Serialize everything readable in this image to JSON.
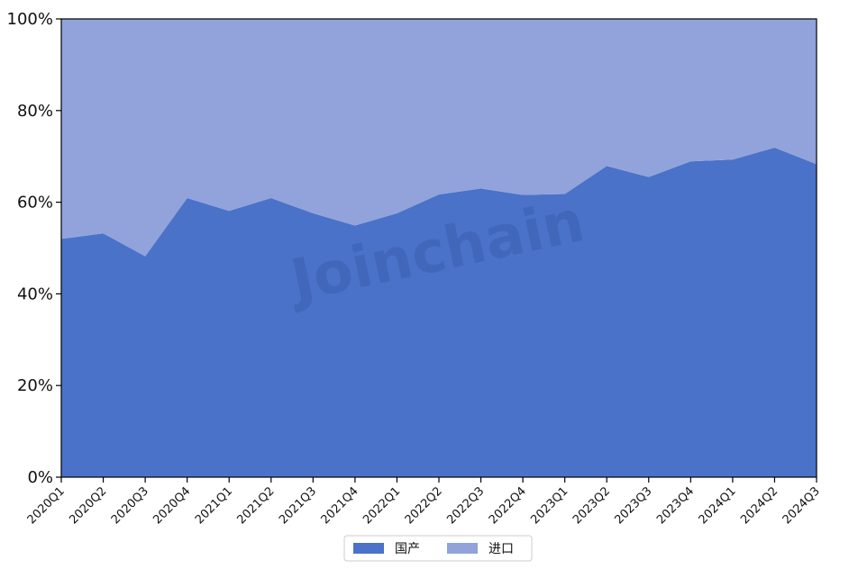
{
  "chart_data": {
    "type": "area",
    "stacked": true,
    "percent": true,
    "categories": [
      "2020Q1",
      "2020Q2",
      "2020Q3",
      "2020Q4",
      "2021Q1",
      "2021Q2",
      "2021Q3",
      "2021Q4",
      "2022Q1",
      "2022Q2",
      "2022Q3",
      "2022Q4",
      "2023Q1",
      "2023Q2",
      "2023Q3",
      "2023Q4",
      "2024Q1",
      "2024Q2",
      "2024Q3"
    ],
    "series": [
      {
        "name": "国产",
        "color": "#4a72c9",
        "values": [
          52.0,
          53.2,
          48.2,
          60.9,
          58.1,
          60.9,
          57.6,
          54.9,
          57.6,
          61.7,
          63.0,
          61.6,
          61.8,
          67.9,
          65.5,
          68.9,
          69.3,
          71.9,
          68.3
        ]
      },
      {
        "name": "进口",
        "color": "#91a3da",
        "values": [
          48.0,
          46.8,
          51.8,
          39.1,
          41.9,
          39.1,
          42.4,
          45.1,
          42.4,
          38.3,
          37.0,
          38.4,
          38.2,
          32.1,
          34.5,
          31.1,
          30.7,
          28.1,
          31.7
        ]
      }
    ],
    "yticks": [
      "0%",
      "20%",
      "40%",
      "60%",
      "80%",
      "100%"
    ],
    "ylim": [
      0,
      100
    ],
    "legend": "bottom-center",
    "grid": false,
    "title": "",
    "xlabel": "",
    "ylabel": ""
  },
  "watermark": {
    "text": "Joinchain"
  }
}
